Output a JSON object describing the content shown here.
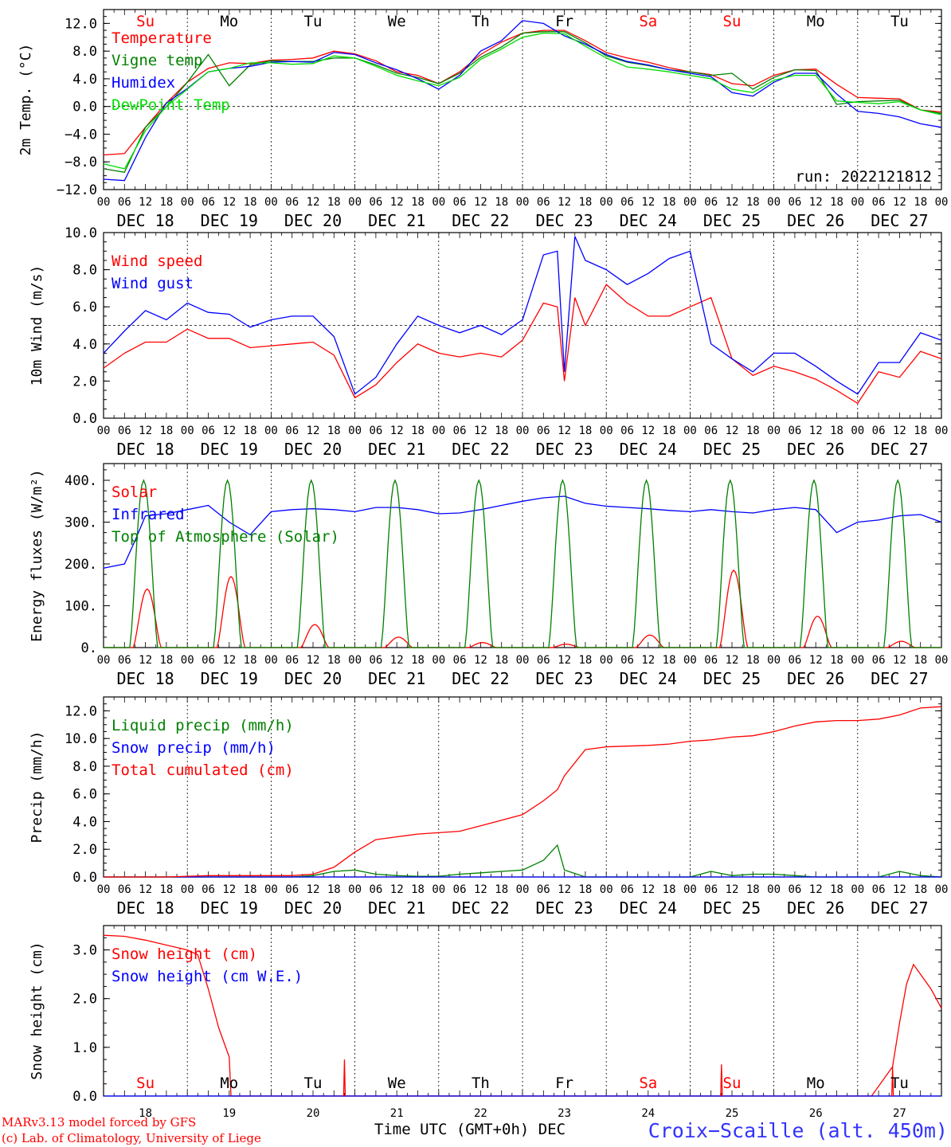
{
  "footer": {
    "model": "MARv3.13 model forced by GFS",
    "lab": "(c) Lab. of Climatology, University of Liege",
    "xlabel": "Time UTC (GMT+0h) DEC",
    "station": "Croix−Scaille (alt. 450m)"
  },
  "time_axis": {
    "hour_ticks": [
      "00",
      "06",
      "12",
      "18"
    ],
    "hour_end": "00",
    "dates": [
      "DEC 18",
      "DEC 19",
      "DEC 20",
      "DEC 21",
      "DEC 22",
      "DEC 23",
      "DEC 24",
      "DEC 25",
      "DEC 26",
      "DEC 27"
    ],
    "weekdays": [
      "Su",
      "Mo",
      "Tu",
      "We",
      "Th",
      "Fr",
      "Sa",
      "Su",
      "Mo",
      "Tu"
    ],
    "weekend_days": [
      0,
      6,
      7
    ],
    "day_numbers": [
      "18",
      "19",
      "20",
      "21",
      "22",
      "23",
      "24",
      "25",
      "26",
      "27"
    ]
  },
  "colors": {
    "red": "#ff0000",
    "green": "#008000",
    "blue": "#0000ff",
    "lightgreen": "#00dd00"
  },
  "chart_data": [
    {
      "type": "line",
      "ylabel": "2m Temp. (°C)",
      "ylim": [
        -12,
        14
      ],
      "ticks": [
        -12,
        -8,
        -4,
        0,
        4,
        8,
        12
      ],
      "tick_labels": [
        "−12.0",
        "−8.0",
        "−4.0",
        "0.0",
        "4.0",
        "8.0",
        "12.0"
      ],
      "refline": 0,
      "annotation": "run: 2022121812",
      "x_hours": [
        0,
        6,
        12,
        18,
        24,
        30,
        36,
        42,
        48,
        54,
        60,
        66,
        72,
        78,
        84,
        90,
        96,
        102,
        108,
        114,
        120,
        126,
        132,
        138,
        144,
        150,
        156,
        162,
        168,
        174,
        180,
        186,
        192,
        198,
        204,
        210,
        216,
        222,
        228,
        234,
        240
      ],
      "series": [
        {
          "name": "Temperature",
          "color": "#ff0000",
          "values": [
            -7,
            -6.8,
            -3,
            0.5,
            3.5,
            5.5,
            6.3,
            6.2,
            6.7,
            6.8,
            7,
            8,
            7.6,
            6.6,
            5,
            4.5,
            3.3,
            5,
            7.5,
            9.3,
            10.6,
            11,
            11,
            9.5,
            7.8,
            7,
            6.4,
            5.6,
            5,
            4.6,
            3.3,
            3,
            4.5,
            5.3,
            5.4,
            3.2,
            1.3,
            1.2,
            1.1,
            -0.5,
            -0.8
          ]
        },
        {
          "name": "Vigne temp",
          "color": "#008000",
          "values": [
            -9,
            -9.5,
            -3,
            0,
            3.5,
            7.5,
            3,
            6,
            6.6,
            6.5,
            6.5,
            7,
            7,
            6,
            4.8,
            4.2,
            3.3,
            4.8,
            7.1,
            8.6,
            10.6,
            10.8,
            10.8,
            9.2,
            7.3,
            6.4,
            5.9,
            5.3,
            5,
            4.5,
            4.8,
            2.5,
            4.2,
            5.3,
            5.2,
            0.3,
            0.7,
            0.8,
            0.9,
            -0.5,
            -1
          ]
        },
        {
          "name": "Humidex",
          "color": "#0000ff",
          "values": [
            -10.5,
            -10.7,
            -4.5,
            0.5,
            2.6,
            5,
            5.5,
            5.8,
            6.4,
            6.5,
            6.4,
            7.8,
            7.5,
            6.3,
            5.3,
            4,
            2.5,
            4.5,
            8,
            9.5,
            12.4,
            12,
            10.2,
            9,
            7.5,
            6.5,
            6,
            5.3,
            4.8,
            4.3,
            2,
            1.5,
            3.5,
            4.8,
            4.8,
            1.8,
            -0.7,
            -1,
            -1.5,
            -2.5,
            -3
          ]
        },
        {
          "name": "DewPoint Temp",
          "color": "#00dd00",
          "values": [
            -8.3,
            -9,
            -3.5,
            0,
            2.5,
            5,
            5.5,
            6.3,
            6.3,
            6.1,
            6.2,
            7.3,
            7,
            5.8,
            4.5,
            3.7,
            3,
            4.2,
            6.8,
            8.3,
            10,
            10.6,
            10.5,
            8.7,
            7,
            5.7,
            5.4,
            5,
            4.5,
            4,
            2.5,
            2,
            3.8,
            4.5,
            4.5,
            0.8,
            0.6,
            0.4,
            0.7,
            -0.5,
            -1.2
          ]
        }
      ]
    },
    {
      "type": "line",
      "ylabel": "10m Wind (m/s)",
      "ylim": [
        0,
        10
      ],
      "ticks": [
        0,
        2,
        4,
        6,
        8,
        10
      ],
      "tick_labels": [
        "0.0",
        "2.0",
        "4.0",
        "6.0",
        "8.0",
        "10.0"
      ],
      "refline": 5,
      "annotation": "",
      "x_hours": [
        0,
        6,
        12,
        18,
        24,
        30,
        36,
        42,
        48,
        54,
        60,
        66,
        72,
        78,
        84,
        90,
        96,
        102,
        108,
        114,
        120,
        126,
        130,
        132,
        135,
        138,
        144,
        150,
        156,
        162,
        168,
        174,
        180,
        186,
        192,
        198,
        204,
        210,
        216,
        222,
        228,
        234,
        240
      ],
      "series": [
        {
          "name": "Wind speed",
          "color": "#ff0000",
          "values": [
            2.7,
            3.5,
            4.1,
            4.1,
            4.8,
            4.3,
            4.3,
            3.8,
            3.9,
            4,
            4.1,
            3.4,
            1.1,
            1.8,
            3,
            4,
            3.5,
            3.3,
            3.5,
            3.3,
            4.2,
            6.2,
            6,
            2,
            6.5,
            5,
            7.2,
            6.2,
            5.5,
            5.5,
            6,
            6.5,
            3.2,
            2.3,
            2.8,
            2.5,
            2.1,
            1.5,
            0.8,
            2.5,
            2.2,
            3.6,
            3.2
          ]
        },
        {
          "name": "Wind gust",
          "color": "#0000ff",
          "values": [
            3.5,
            4.7,
            5.8,
            5.3,
            6.2,
            5.7,
            5.6,
            4.9,
            5.3,
            5.5,
            5.5,
            4.4,
            1.3,
            2.2,
            4,
            5.5,
            5,
            4.6,
            5,
            4.5,
            5.3,
            8.8,
            9,
            2.5,
            9.8,
            8.5,
            8,
            7.2,
            7.8,
            8.6,
            9,
            4,
            3.2,
            2.5,
            3.5,
            3.5,
            2.8,
            2,
            1.3,
            3,
            3,
            4.6,
            4.2
          ]
        }
      ]
    },
    {
      "type": "line",
      "ylabel": "Energy fluxes (W/m²)",
      "ylim": [
        0,
        440
      ],
      "ticks": [
        0,
        100,
        200,
        300,
        400
      ],
      "tick_labels": [
        "0.",
        "100.",
        "200.",
        "300.",
        "400."
      ],
      "refline": null,
      "annotation": "",
      "series": [
        {
          "name": "Solar",
          "color": "#ff0000",
          "daily_peak": [
            140,
            170,
            55,
            25,
            12,
            8,
            30,
            185,
            75,
            15
          ]
        },
        {
          "name": "Infrared",
          "color": "#0000ff",
          "x_hours": [
            0,
            6,
            9,
            12,
            18,
            24,
            30,
            36,
            42,
            48,
            54,
            60,
            66,
            72,
            78,
            84,
            90,
            96,
            102,
            108,
            114,
            120,
            126,
            132,
            138,
            144,
            150,
            156,
            162,
            168,
            174,
            180,
            186,
            192,
            198,
            204,
            210,
            216,
            222,
            228,
            234,
            240
          ],
          "values": [
            190,
            200,
            255,
            315,
            320,
            330,
            340,
            300,
            270,
            325,
            330,
            332,
            330,
            325,
            335,
            335,
            330,
            320,
            322,
            330,
            340,
            350,
            358,
            362,
            345,
            338,
            335,
            332,
            328,
            325,
            330,
            325,
            322,
            330,
            335,
            330,
            275,
            300,
            305,
            315,
            318,
            300
          ]
        },
        {
          "name": "Top of Atmosphere (Solar)",
          "color": "#008000",
          "daily_peak": [
            400,
            400,
            400,
            400,
            400,
            400,
            400,
            400,
            400,
            400
          ]
        }
      ]
    },
    {
      "type": "line",
      "ylabel": "Precip (mm/h)",
      "ylim": [
        0,
        13
      ],
      "ticks": [
        0,
        2,
        4,
        6,
        8,
        10,
        12
      ],
      "tick_labels": [
        "0.0",
        "2.0",
        "4.0",
        "6.0",
        "8.0",
        "10.0",
        "12.0"
      ],
      "refline": null,
      "annotation": "",
      "x_hours": [
        0,
        6,
        12,
        18,
        24,
        30,
        36,
        42,
        48,
        54,
        60,
        66,
        72,
        78,
        84,
        90,
        96,
        102,
        108,
        114,
        120,
        126,
        130,
        132,
        138,
        144,
        150,
        156,
        162,
        168,
        174,
        180,
        186,
        192,
        198,
        204,
        210,
        216,
        222,
        228,
        234,
        240
      ],
      "series": [
        {
          "name": "Liquid precip (mm/h)",
          "color": "#008000",
          "values": [
            0,
            0,
            0,
            0,
            0,
            0,
            0,
            0,
            0,
            0,
            0.1,
            0.4,
            0.5,
            0.2,
            0.1,
            0.05,
            0.05,
            0.2,
            0.3,
            0.4,
            0.5,
            1.2,
            2.3,
            0.5,
            0,
            0,
            0,
            0,
            0,
            0,
            0.4,
            0.1,
            0.2,
            0.2,
            0.1,
            0,
            0,
            0,
            0,
            0.4,
            0.1,
            0
          ]
        },
        {
          "name": "Snow precip (mm/h)",
          "color": "#0000ff",
          "values": [
            0,
            0,
            0,
            0,
            0,
            0,
            0,
            0,
            0,
            0,
            0,
            0,
            0,
            0,
            0,
            0,
            0,
            0,
            0,
            0,
            0,
            0,
            0,
            0,
            0,
            0,
            0,
            0,
            0,
            0,
            0,
            0,
            0,
            0,
            0,
            0,
            0,
            0,
            0,
            0,
            0,
            0
          ]
        },
        {
          "name": "Total cumulated (cm)",
          "color": "#ff0000",
          "values": [
            0,
            0,
            0,
            0,
            0.05,
            0.1,
            0.1,
            0.1,
            0.1,
            0.1,
            0.2,
            0.7,
            1.8,
            2.7,
            2.9,
            3.1,
            3.2,
            3.3,
            3.7,
            4.1,
            4.5,
            5.5,
            6.3,
            7.3,
            9.2,
            9.4,
            9.45,
            9.5,
            9.6,
            9.8,
            9.9,
            10.1,
            10.2,
            10.5,
            10.9,
            11.2,
            11.3,
            11.3,
            11.4,
            11.7,
            12.2,
            12.3
          ]
        }
      ]
    },
    {
      "type": "line",
      "ylabel": "Snow height (cm)",
      "ylim": [
        0,
        3.5
      ],
      "ticks": [
        0,
        1,
        2,
        3
      ],
      "tick_labels": [
        "0.0",
        "1.0",
        "2.0",
        "3.0"
      ],
      "refline": null,
      "annotation": "",
      "x_hours": [
        0,
        6,
        12,
        18,
        24,
        27,
        30,
        33,
        36,
        36.5,
        48,
        96,
        100,
        140,
        160,
        172,
        196,
        220,
        226,
        228,
        230,
        232,
        234,
        237,
        240
      ],
      "series": [
        {
          "name": "Snow height (cm)",
          "color": "#ff0000",
          "values": [
            3.3,
            3.28,
            3.2,
            3.1,
            3.0,
            2.9,
            2.2,
            1.4,
            0.8,
            0,
            0,
            0,
            0,
            0,
            0,
            0,
            0,
            0,
            0.6,
            1.5,
            2.3,
            2.7,
            2.5,
            2.2,
            1.8
          ]
        },
        {
          "name": "Snow height (cm W.E.)",
          "color": "#0000ff",
          "values": [
            0,
            0,
            0,
            0,
            0,
            0,
            0,
            0,
            0,
            0,
            0,
            0,
            0,
            0,
            0,
            0,
            0,
            0,
            0,
            0,
            0,
            0,
            0,
            0,
            0
          ]
        }
      ],
      "spikes": [
        {
          "hour": 69,
          "value": 0.75
        },
        {
          "hour": 177,
          "value": 0.65
        },
        {
          "hour": 226,
          "value": 0.6
        }
      ]
    }
  ]
}
